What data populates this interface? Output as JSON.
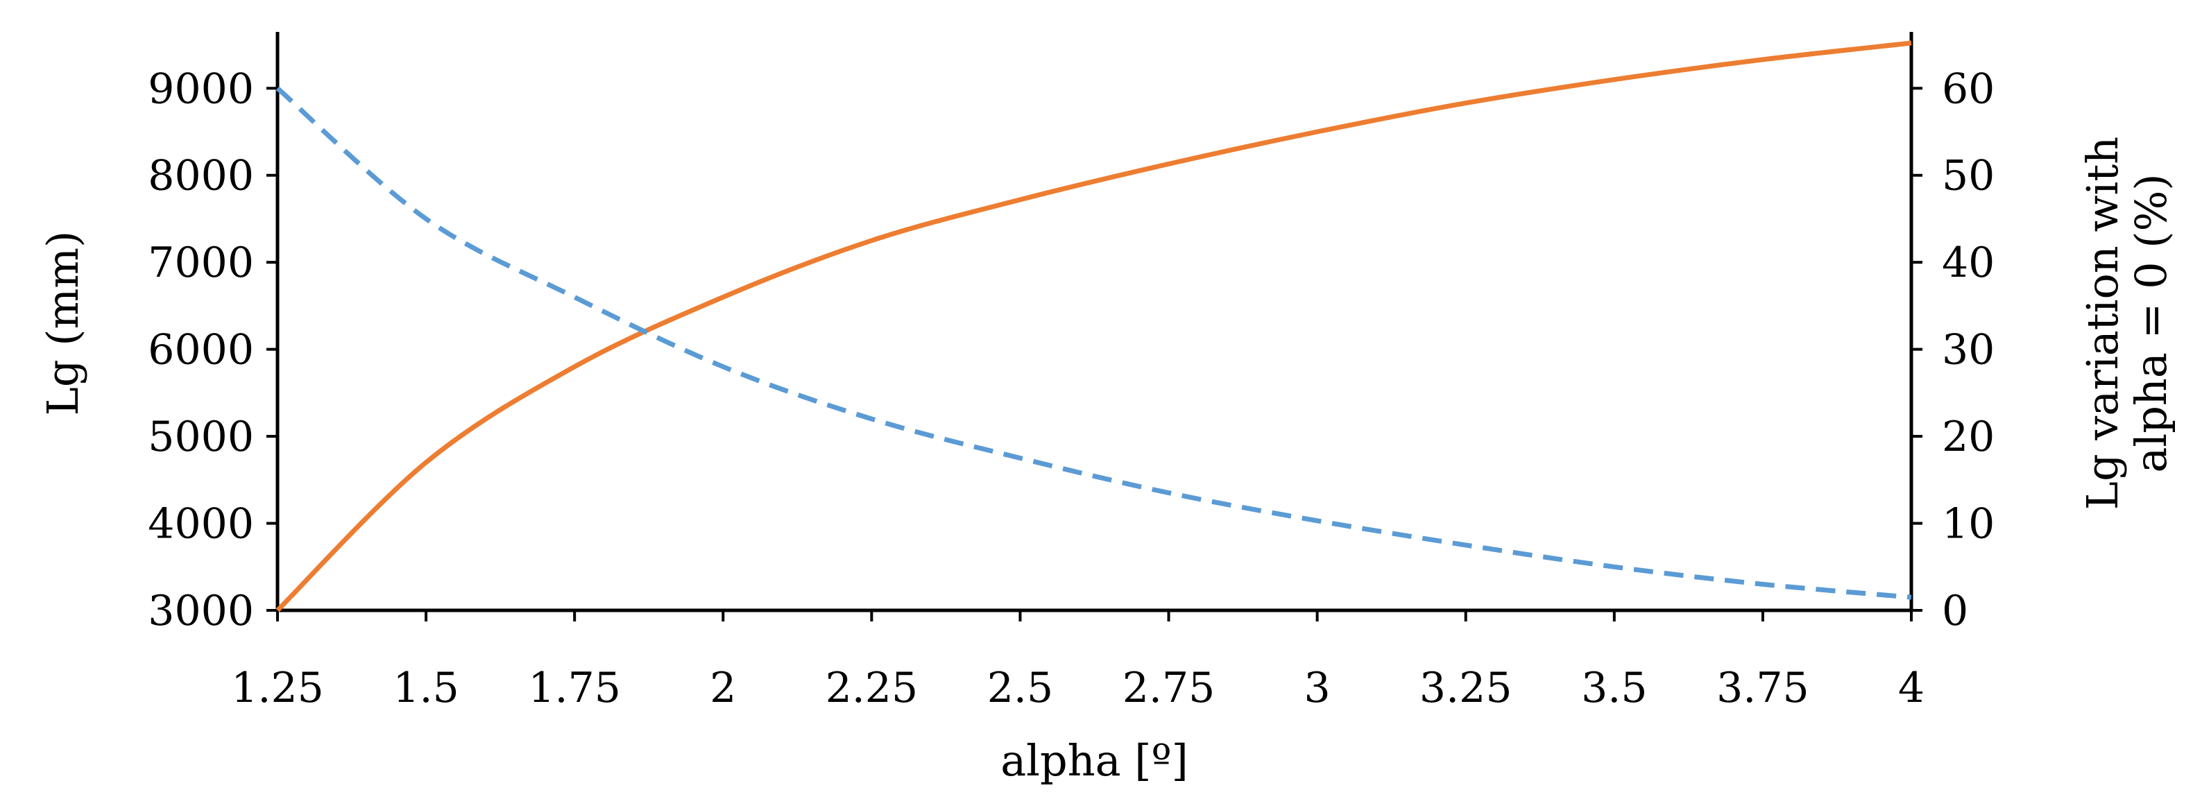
{
  "chart_data": {
    "type": "line",
    "xlabel": "alpha [º]",
    "ylabel_left": "Lg (mm)",
    "ylabel_right_lines": [
      "Lg variation with",
      "alpha = 0 (%)"
    ],
    "xlim": [
      1.25,
      4
    ],
    "ylim_left": [
      3000,
      9600
    ],
    "ylim_right": [
      0,
      66
    ],
    "x_ticks": [
      "1.25",
      "1.5",
      "1.75",
      "2",
      "2.25",
      "2.5",
      "2.75",
      "3",
      "3.25",
      "3.5",
      "3.75",
      "4"
    ],
    "y_left_ticks": [
      "3000",
      "4000",
      "5000",
      "6000",
      "7000",
      "8000",
      "9000"
    ],
    "y_right_ticks": [
      "0",
      "10",
      "20",
      "30",
      "40",
      "50",
      "60"
    ],
    "grid": false,
    "legend": "none",
    "series": [
      {
        "axis": "left",
        "color": "#ED7D31",
        "style": "solid",
        "x": [
          1.25,
          1.5,
          1.75,
          2,
          2.25,
          2.5,
          2.75,
          3,
          3.25,
          3.5,
          3.75,
          4
        ],
        "values": [
          3000,
          4700,
          5800,
          6600,
          7250,
          7720,
          8130,
          8500,
          8830,
          9100,
          9330,
          9520
        ]
      },
      {
        "axis": "right",
        "color": "#5B9BD5",
        "style": "dashed",
        "x": [
          1.25,
          1.5,
          1.75,
          2,
          2.25,
          2.5,
          2.75,
          3,
          3.25,
          3.5,
          3.75,
          4
        ],
        "values": [
          60,
          45,
          36,
          28,
          22,
          17.5,
          13.5,
          10.3,
          7.5,
          5.0,
          3.0,
          1.5
        ]
      }
    ]
  }
}
